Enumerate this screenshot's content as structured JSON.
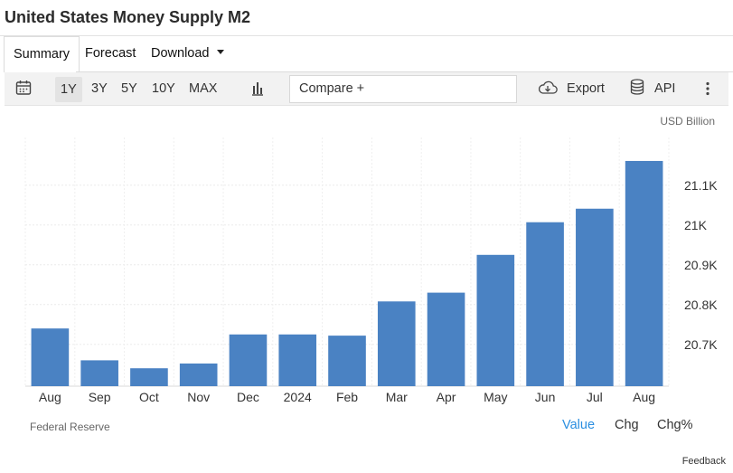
{
  "title": "United States Money Supply M2",
  "tabs": [
    {
      "label": "Summary",
      "active": true
    },
    {
      "label": "Forecast",
      "active": false
    },
    {
      "label": "Download",
      "active": false
    }
  ],
  "toolbar": {
    "ranges": [
      "1Y",
      "3Y",
      "5Y",
      "10Y",
      "MAX"
    ],
    "active_range": "1Y",
    "compare_placeholder": "Compare +",
    "export_label": "Export",
    "api_label": "API"
  },
  "bar_color": "#4a82c3",
  "accent_color": "#2a8ee0",
  "chart_data": {
    "type": "bar",
    "categories": [
      "Aug",
      "Sep",
      "Oct",
      "Nov",
      "Dec",
      "2024",
      "Feb",
      "Mar",
      "Apr",
      "May",
      "Jun",
      "Jul",
      "Aug"
    ],
    "values": [
      20740,
      20660,
      20640,
      20652,
      20725,
      20725,
      20722,
      20808,
      20830,
      20925,
      21007,
      21041,
      21161
    ],
    "unit": "USD Billion",
    "y_ticks": [
      {
        "value": 20700,
        "label": "20.7K"
      },
      {
        "value": 20800,
        "label": "20.8K"
      },
      {
        "value": 20900,
        "label": "20.9K"
      },
      {
        "value": 21000,
        "label": "21K"
      },
      {
        "value": 21100,
        "label": "21.1K"
      }
    ],
    "ylim": [
      20595,
      21220
    ],
    "grid": true
  },
  "footer": {
    "source": "Federal Reserve",
    "view_options": [
      {
        "label": "Value",
        "active": true
      },
      {
        "label": "Chg",
        "active": false
      },
      {
        "label": "Chg%",
        "active": false
      }
    ],
    "feedback": "Feedback"
  }
}
